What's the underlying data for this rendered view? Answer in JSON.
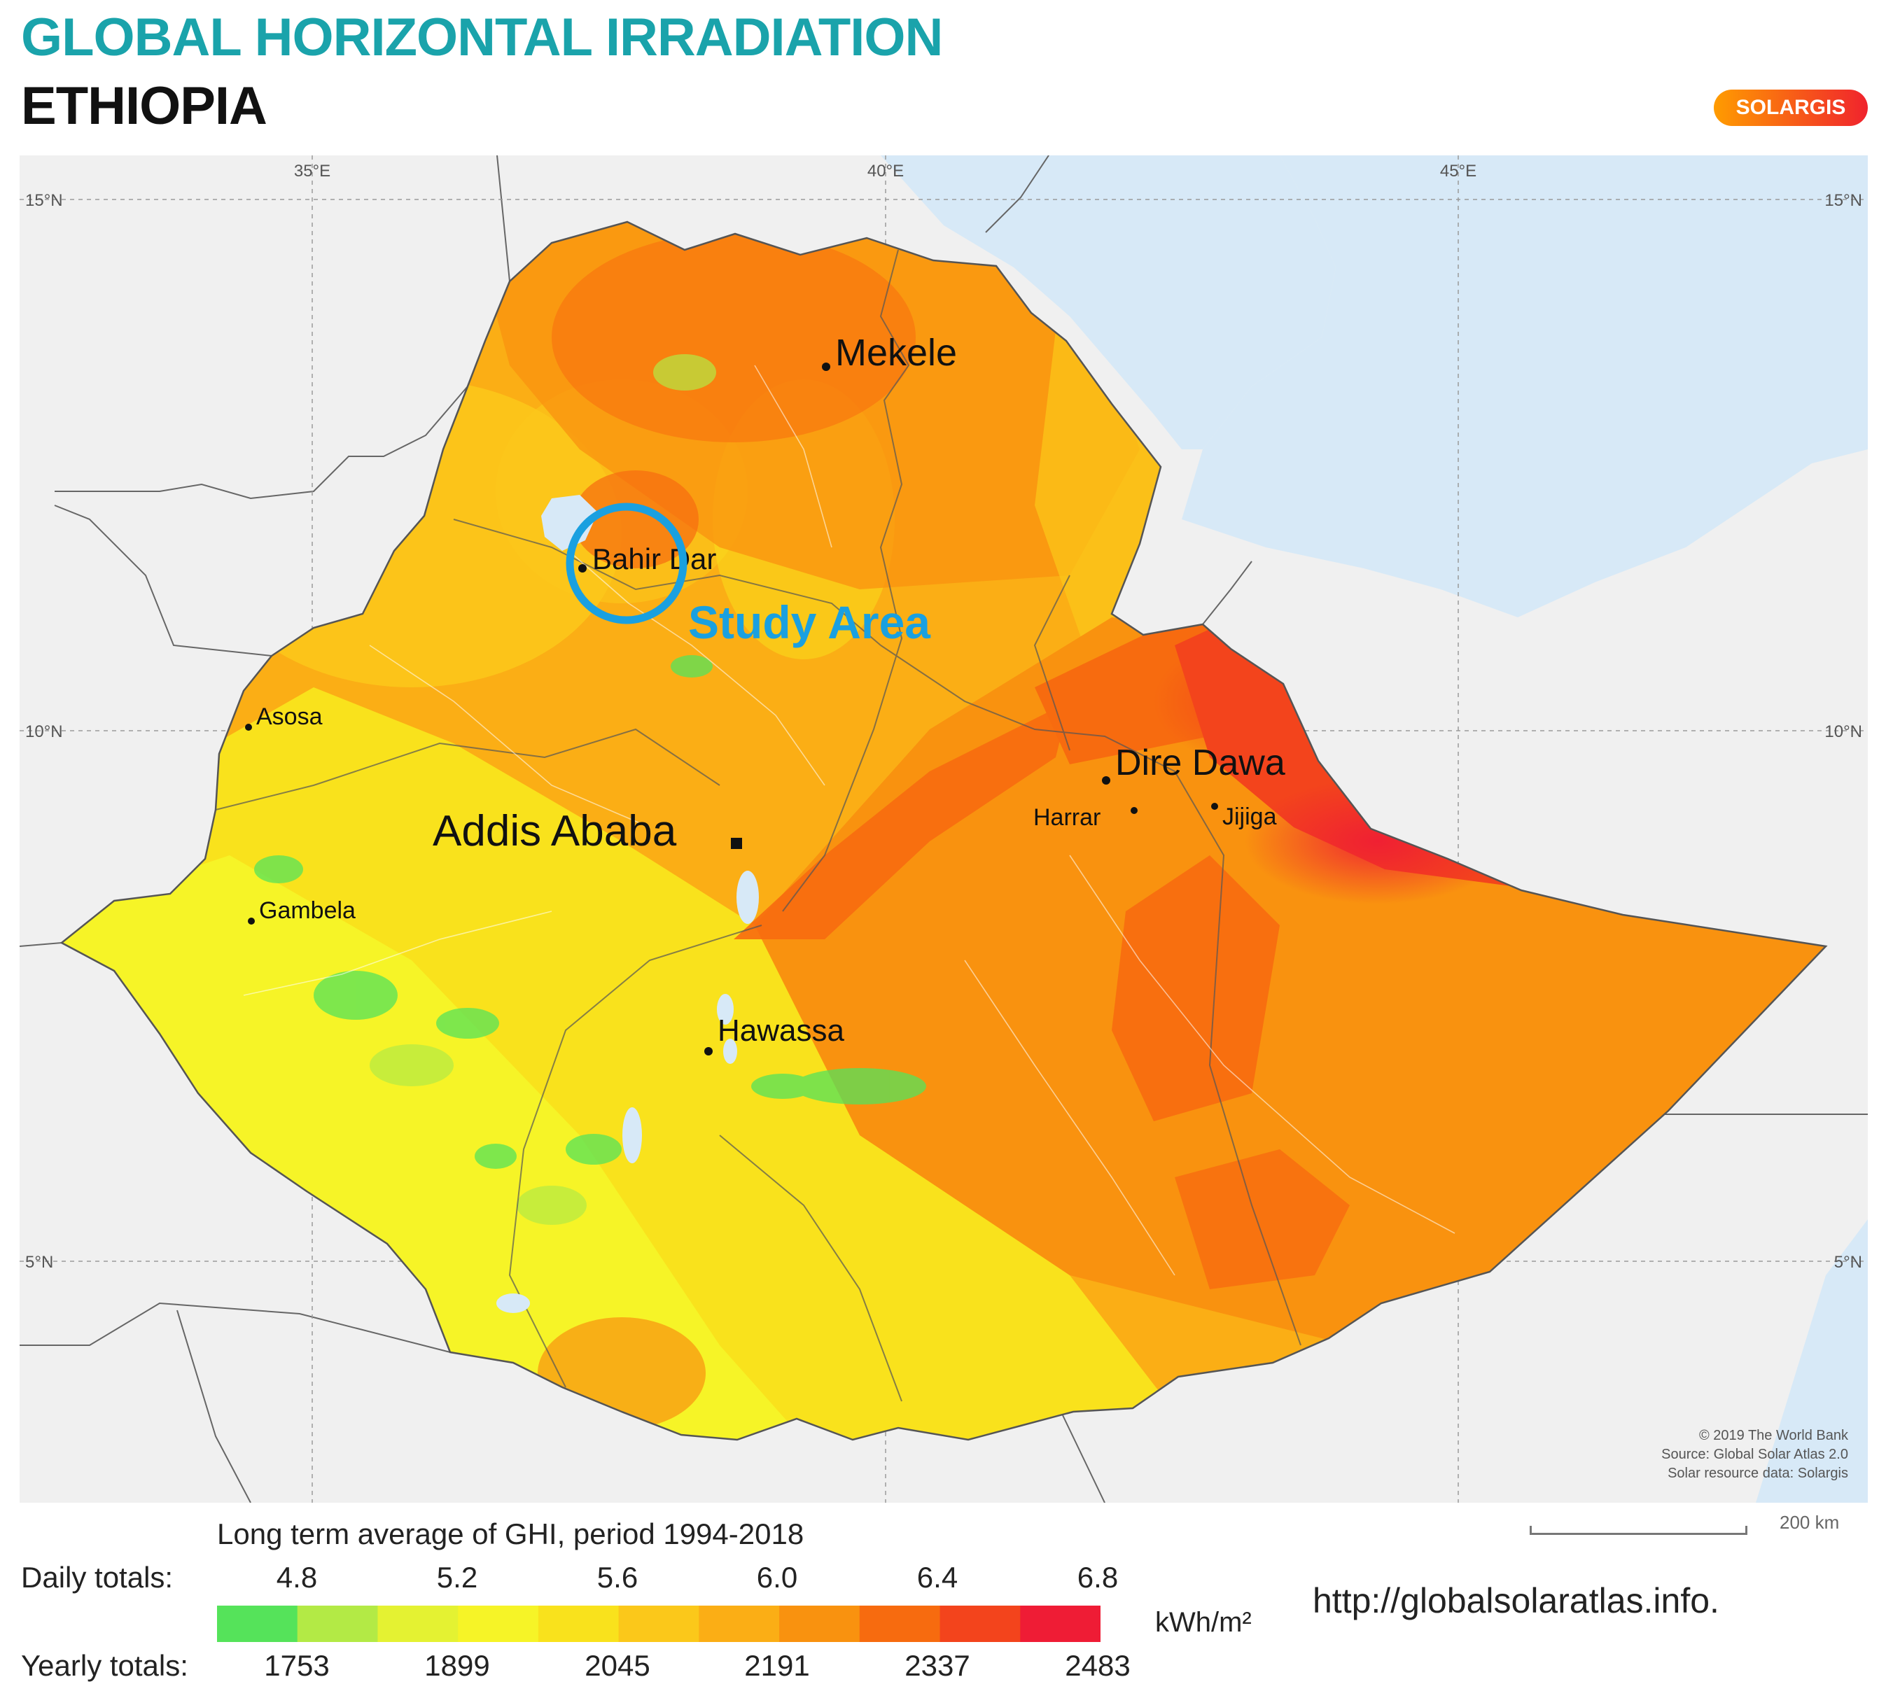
{
  "header": {
    "title": "GLOBAL HORIZONTAL IRRADIATION",
    "country": "ETHIOPIA",
    "brand": "SOLARGIS"
  },
  "map": {
    "longitude_labels": [
      "35°E",
      "40°E",
      "45°E"
    ],
    "latitude_labels": [
      "15°N",
      "10°N",
      "5°N"
    ],
    "cities": {
      "mekele": "Mekele",
      "bahir_dar": "Bahir Dar",
      "asosa": "Asosa",
      "addis_ababa": "Addis Ababa",
      "gambela": "Gambela",
      "hawassa": "Hawassa",
      "dire_dawa": "Dire Dawa",
      "harrar": "Harrar",
      "jijiga": "Jijiga"
    },
    "annotation": "Study Area",
    "credits": [
      "© 2019 The World Bank",
      "Source: Global Solar Atlas 2.0",
      "Solar resource data: Solargis"
    ],
    "scale_label": "200 km",
    "colors": {
      "sea": "#d7e9f7",
      "land": "#f0f0f0",
      "annotation": "#1aa0e0"
    }
  },
  "legend": {
    "title": "Long term average of GHI, period 1994-2018",
    "daily_label": "Daily totals:",
    "yearly_label": "Yearly totals:",
    "daily_ticks": [
      "4.8",
      "5.2",
      "5.6",
      "6.0",
      "6.4",
      "6.8"
    ],
    "yearly_ticks": [
      "1753",
      "1899",
      "2045",
      "2191",
      "2337",
      "2483"
    ],
    "unit": "kWh/m²",
    "colors": [
      "#55e35a",
      "#b3ea45",
      "#e4f232",
      "#f6f427",
      "#f9e21c",
      "#fbc81a",
      "#fbae15",
      "#f9920f",
      "#f76b0f",
      "#f3441c",
      "#ef1c35"
    ]
  },
  "footer": {
    "url": "http://globalsolaratlas.info."
  }
}
